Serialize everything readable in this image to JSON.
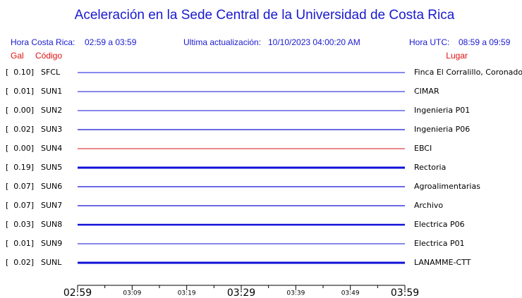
{
  "title": "Aceleración en la Sede Central de la Universidad de Costa Rica",
  "header": {
    "local_label": "Hora Costa Rica:",
    "local_range": "02:59 a 03:59",
    "update_label": "Ultima actualización:",
    "update_value": "10/10/2023 04:00:20 AM",
    "utc_label": "Hora UTC:",
    "utc_range": "08:59 a 09:59"
  },
  "columns": {
    "gal": "Gal",
    "code": "Código",
    "place": "Lugar"
  },
  "rows": [
    {
      "gal": "[  0.10]",
      "code": "SFCL",
      "place": "Finca El Corralillo, Coronado",
      "color": "#1010d8"
    },
    {
      "gal": "[  0.01]",
      "code": "SUN1",
      "place": "CIMAR",
      "color": "#1010d8"
    },
    {
      "gal": "[  0.00]",
      "code": "SUN2",
      "place": "Ingenieria P01",
      "color": "#1010d8"
    },
    {
      "gal": "[  0.02]",
      "code": "SUN3",
      "place": "Ingenieria P06",
      "color": "#1010d8"
    },
    {
      "gal": "[  0.00]",
      "code": "SUN4",
      "place": "EBCI",
      "color": "#d81010"
    },
    {
      "gal": "[  0.19]",
      "code": "SUN5",
      "place": "Rectoria",
      "color": "#1010d8"
    },
    {
      "gal": "[  0.07]",
      "code": "SUN6",
      "place": "Agroalimentarias",
      "color": "#1010d8"
    },
    {
      "gal": "[  0.07]",
      "code": "SUN7",
      "place": "Archivo",
      "color": "#1010d8"
    },
    {
      "gal": "[  0.03]",
      "code": "SUN8",
      "place": "Electrica P06",
      "color": "#1010d8"
    },
    {
      "gal": "[  0.01]",
      "code": "SUN9",
      "place": "Electrica P01",
      "color": "#1010d8"
    },
    {
      "gal": "[  0.02]",
      "code": "SUNL",
      "place": "LANAMME-CTT",
      "color": "#1010d8"
    }
  ],
  "time_axis": [
    {
      "label": "02:59",
      "major": true
    },
    {
      "label": "03:09",
      "major": false
    },
    {
      "label": "03:19",
      "major": false
    },
    {
      "label": "03:29",
      "major": true
    },
    {
      "label": "03:39",
      "major": false
    },
    {
      "label": "03:49",
      "major": false
    },
    {
      "label": "03:59",
      "major": true
    }
  ]
}
